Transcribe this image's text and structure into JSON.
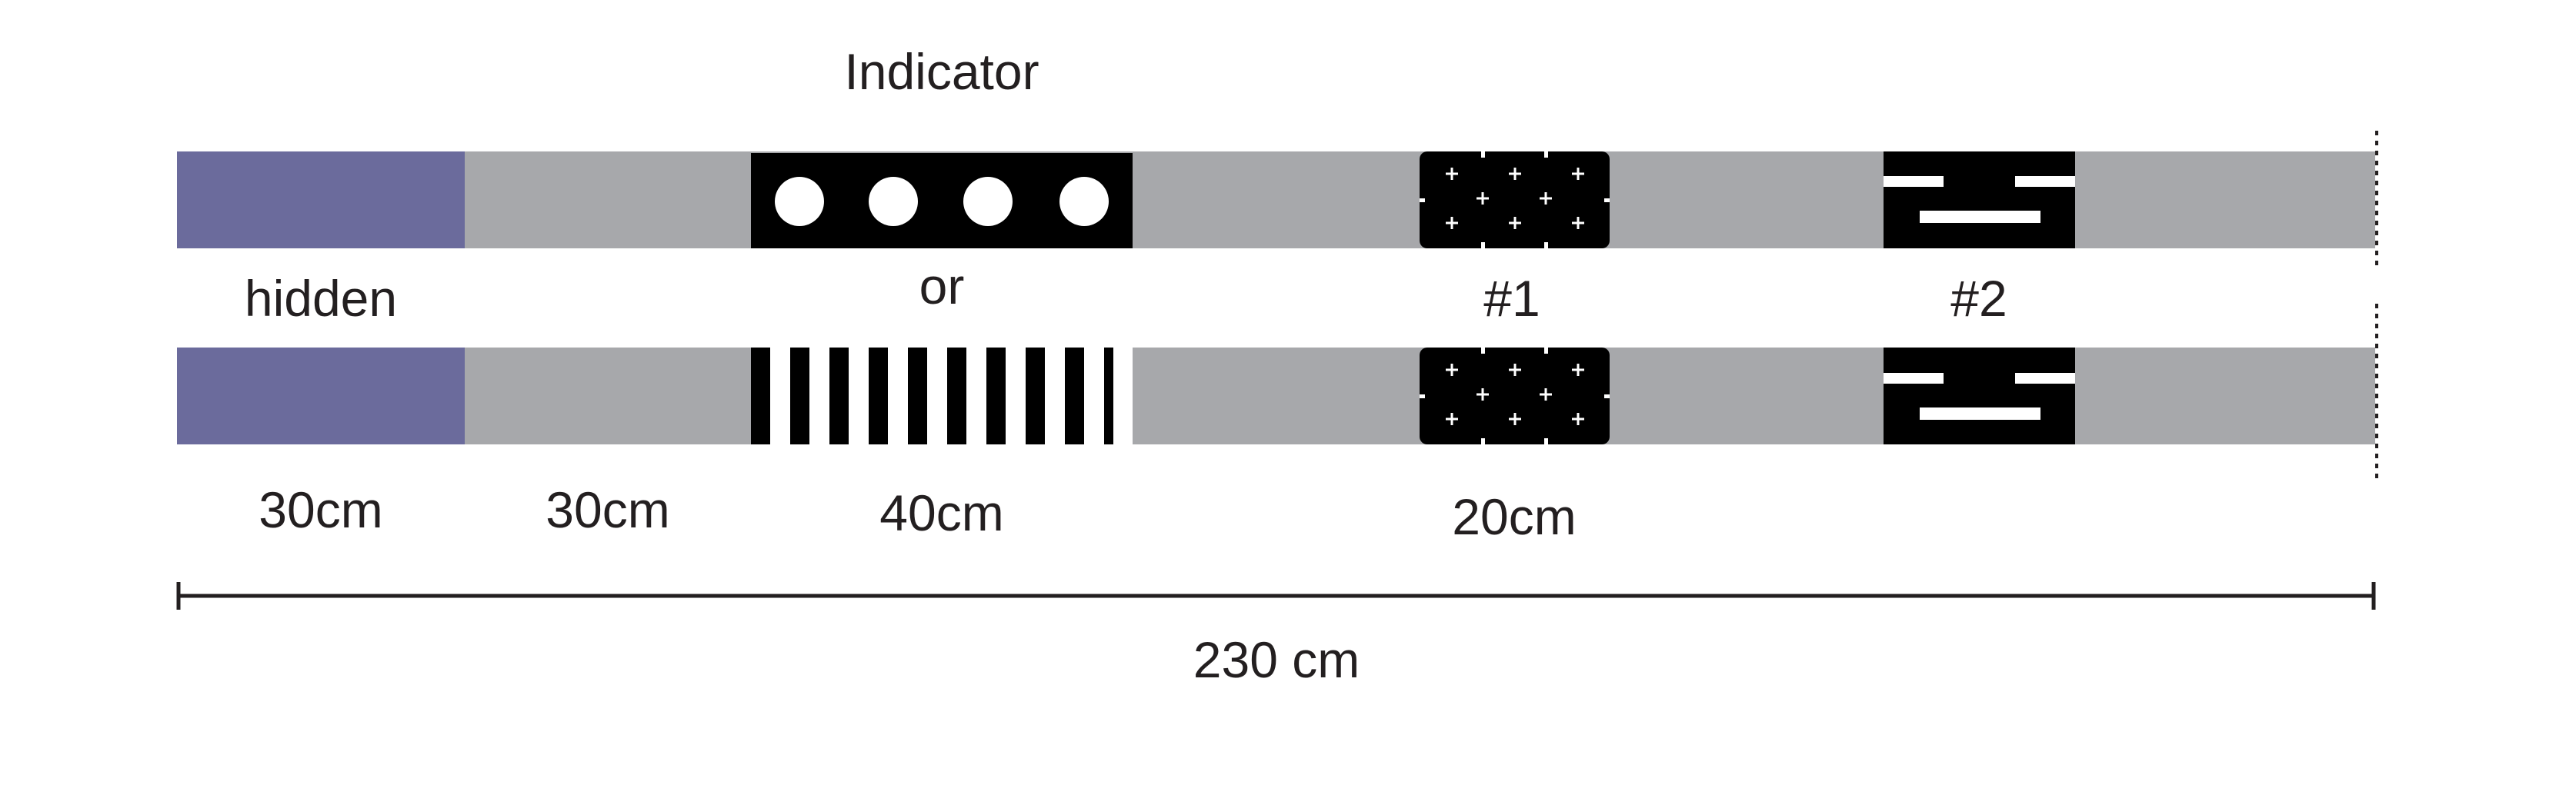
{
  "labels": {
    "indicator": "Indicator",
    "or": "or",
    "hidden": "hidden",
    "landmark_1": "#1",
    "landmark_2": "#2",
    "seg_hidden_len": "30cm",
    "seg_gray_len": "30cm",
    "seg_indicator_len": "40cm",
    "seg_landmark_len": "20cm",
    "total_len": "230 cm"
  },
  "colors": {
    "hidden_zone": "#6b6b9c",
    "track": "#a7a8ab",
    "pattern_bg": "#000000",
    "pattern_fg": "#ffffff",
    "text": "#231f20"
  },
  "icons": {
    "indicator_a": "four-white-dots-pattern",
    "indicator_b": "vertical-stripes-pattern",
    "landmark_1": "cross-grid-pattern",
    "landmark_2": "bar-glyph-pattern"
  }
}
